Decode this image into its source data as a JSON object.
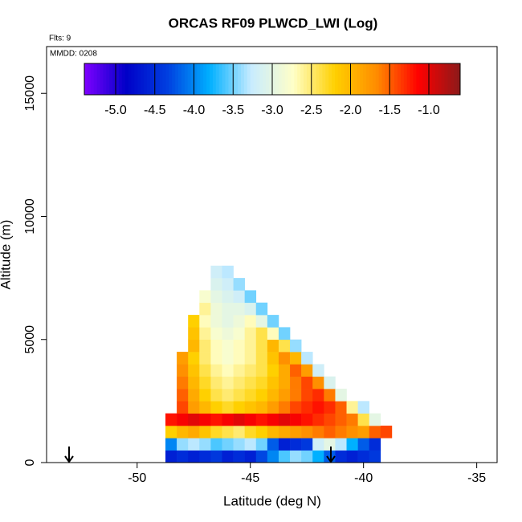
{
  "chart_data": {
    "type": "heatmap",
    "title": "ORCAS RF09 PLWCD_LWI (Log)",
    "flights_label": "Flts: 9",
    "date_label": "MMDD: 0208",
    "x_label": "Latitude (deg N)",
    "y_label": "Altitude (m)",
    "xlim": [
      -54,
      -34.1
    ],
    "ylim": [
      0,
      16900
    ],
    "xticks": [
      -50,
      -45,
      -40,
      -35
    ],
    "yticks": [
      0,
      5000,
      10000,
      15000
    ],
    "x": [
      -48.5,
      -48,
      -47.5,
      -47,
      -46.5,
      -46,
      -45.5,
      -45,
      -44.5,
      -44,
      -43.5,
      -43,
      -42.5,
      -42,
      -41.5,
      -41,
      -40.5,
      -40,
      -39.5,
      -39
    ],
    "y": [
      250,
      750,
      1250,
      1750,
      2250,
      2750,
      3250,
      3750,
      4250,
      4750,
      5250,
      5750,
      6250,
      6750,
      7250,
      7750
    ],
    "z": [
      [
        -4.6,
        -4.5,
        -4.6,
        -4.5,
        -4.4,
        -4.6,
        -4.5,
        -4.6,
        -4.3,
        -4.0,
        -3.6,
        -3.4,
        -3.5,
        -3.8,
        -4.2,
        -4.5,
        -4.6,
        -4.5,
        -4.4,
        null
      ],
      [
        -4.0,
        -3.4,
        -3.3,
        -3.4,
        -3.6,
        -3.5,
        -3.4,
        -3.3,
        -3.5,
        -4.2,
        -4.6,
        -4.5,
        -4.4,
        -3.2,
        -3.0,
        -3.3,
        -3.8,
        -4.2,
        -4.5,
        null
      ],
      [
        -2.2,
        -2.0,
        -1.9,
        -2.1,
        -2.3,
        -2.4,
        -2.5,
        -2.3,
        -2.2,
        -2.0,
        -1.9,
        -1.8,
        -1.7,
        -1.6,
        -1.5,
        -1.6,
        -1.7,
        -1.8,
        -1.5,
        -1.4
      ],
      [
        -1.2,
        -1.1,
        -1.0,
        -1.1,
        -1.2,
        -1.1,
        -1.0,
        -1.1,
        -1.2,
        -1.1,
        -1.0,
        -1.1,
        -1.2,
        -1.3,
        -1.4,
        -1.5,
        -1.6,
        -2.4,
        -3.0,
        null
      ],
      [
        null,
        -1.4,
        -1.8,
        -2.0,
        -2.2,
        -2.3,
        -2.2,
        -2.1,
        -2.0,
        -1.8,
        -1.6,
        -1.4,
        -1.3,
        -1.2,
        -1.3,
        -1.5,
        -2.6,
        -3.3,
        null,
        null
      ],
      [
        null,
        -1.5,
        -1.9,
        -2.2,
        -2.4,
        -2.5,
        -2.4,
        -2.3,
        -2.2,
        -2.0,
        -1.8,
        -1.6,
        -1.4,
        -1.3,
        -1.6,
        -3.0,
        null,
        null,
        null,
        null
      ],
      [
        null,
        -1.6,
        -2.0,
        -2.3,
        -2.5,
        -2.6,
        -2.5,
        -2.4,
        -2.3,
        -2.1,
        -1.9,
        -1.6,
        -1.4,
        -1.7,
        -3.1,
        null,
        null,
        null,
        null,
        null
      ],
      [
        null,
        -1.7,
        -2.1,
        -2.4,
        -2.6,
        -2.7,
        -2.6,
        -2.5,
        -2.4,
        -2.2,
        -1.9,
        -1.5,
        -1.8,
        -3.2,
        null,
        null,
        null,
        null,
        null,
        null
      ],
      [
        null,
        -1.8,
        -2.2,
        -2.5,
        -2.7,
        -2.8,
        -2.7,
        -2.6,
        -2.4,
        -2.1,
        -1.7,
        -2.0,
        -3.3,
        null,
        null,
        null,
        null,
        null,
        null,
        null
      ],
      [
        null,
        null,
        -2.0,
        -2.5,
        -2.7,
        -2.8,
        -2.7,
        -2.6,
        -2.4,
        -2.0,
        -2.4,
        -3.4,
        null,
        null,
        null,
        null,
        null,
        null,
        null,
        null
      ],
      [
        null,
        null,
        -2.1,
        -2.6,
        -2.8,
        -2.9,
        -2.8,
        -2.6,
        -2.4,
        -2.7,
        -3.5,
        null,
        null,
        null,
        null,
        null,
        null,
        null,
        null,
        null
      ],
      [
        null,
        null,
        -2.2,
        -2.7,
        -2.9,
        -3.0,
        -2.9,
        -2.7,
        -3.0,
        -3.5,
        null,
        null,
        null,
        null,
        null,
        null,
        null,
        null,
        null,
        null
      ],
      [
        null,
        null,
        null,
        -2.6,
        -2.9,
        -3.0,
        -3.0,
        -3.1,
        -3.5,
        null,
        null,
        null,
        null,
        null,
        null,
        null,
        null,
        null,
        null,
        null
      ],
      [
        null,
        null,
        null,
        -2.8,
        -3.0,
        -3.1,
        -3.2,
        -3.5,
        null,
        null,
        null,
        null,
        null,
        null,
        null,
        null,
        null,
        null,
        null,
        null
      ],
      [
        null,
        null,
        null,
        null,
        -3.1,
        -3.2,
        -3.4,
        null,
        null,
        null,
        null,
        null,
        null,
        null,
        null,
        null,
        null,
        null,
        null,
        null
      ],
      [
        null,
        null,
        null,
        null,
        -3.2,
        -3.3,
        null,
        null,
        null,
        null,
        null,
        null,
        null,
        null,
        null,
        null,
        null,
        null,
        null,
        null
      ]
    ],
    "clim": [
      -5.4,
      -0.6
    ],
    "cticks": [
      {
        "value": -5,
        "label": "-5.0"
      },
      {
        "value": -4.5,
        "label": "-4.5"
      },
      {
        "value": -4,
        "label": "-4.0"
      },
      {
        "value": -3.5,
        "label": "-3.5"
      },
      {
        "value": -3,
        "label": "-3.0"
      },
      {
        "value": -2.5,
        "label": "-2.5"
      },
      {
        "value": -2,
        "label": "-2.0"
      },
      {
        "value": -1.5,
        "label": "-1.5"
      },
      {
        "value": -1,
        "label": "-1.0"
      }
    ],
    "colormap": [
      "#7f00ff",
      "#0000c8",
      "#0040e0",
      "#00b0ff",
      "#c8ecff",
      "#ffffc8",
      "#ffd000",
      "#ff8c00",
      "#ff0000",
      "#8b1a1a"
    ]
  }
}
